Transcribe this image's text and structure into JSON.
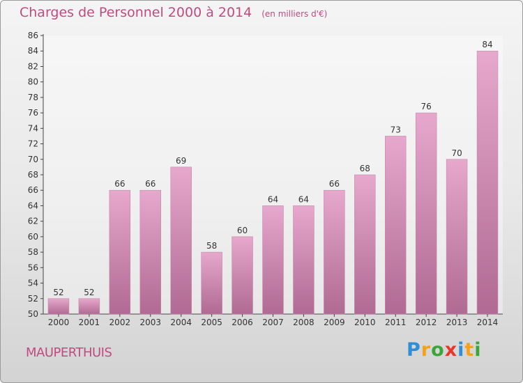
{
  "title": "Charges de Personnel 2000 à 2014",
  "subtitle": "(en milliers d'€)",
  "location": "MAUPERTHUIS",
  "logo": {
    "letters": [
      "P",
      "r",
      "o",
      "x",
      "i",
      "t",
      "i"
    ],
    "colors": [
      "#2e8fd6",
      "#f5a21b",
      "#3aa63a",
      "#e8362b",
      "#2e8fd6",
      "#f5a21b",
      "#3aa63a"
    ]
  },
  "colors": {
    "accent": "#c04b80",
    "bar_top": "#e6a8cc",
    "bar_bottom": "#b06a93"
  },
  "chart_data": {
    "type": "bar",
    "categories": [
      "2000",
      "2001",
      "2002",
      "2003",
      "2004",
      "2005",
      "2006",
      "2007",
      "2008",
      "2009",
      "2010",
      "2011",
      "2012",
      "2013",
      "2014"
    ],
    "values": [
      52,
      52,
      66,
      66,
      69,
      58,
      60,
      64,
      64,
      66,
      68,
      73,
      76,
      70,
      84
    ],
    "ylim": [
      50,
      86
    ],
    "ytick_step": 2,
    "grid": false,
    "data_labels": true
  }
}
